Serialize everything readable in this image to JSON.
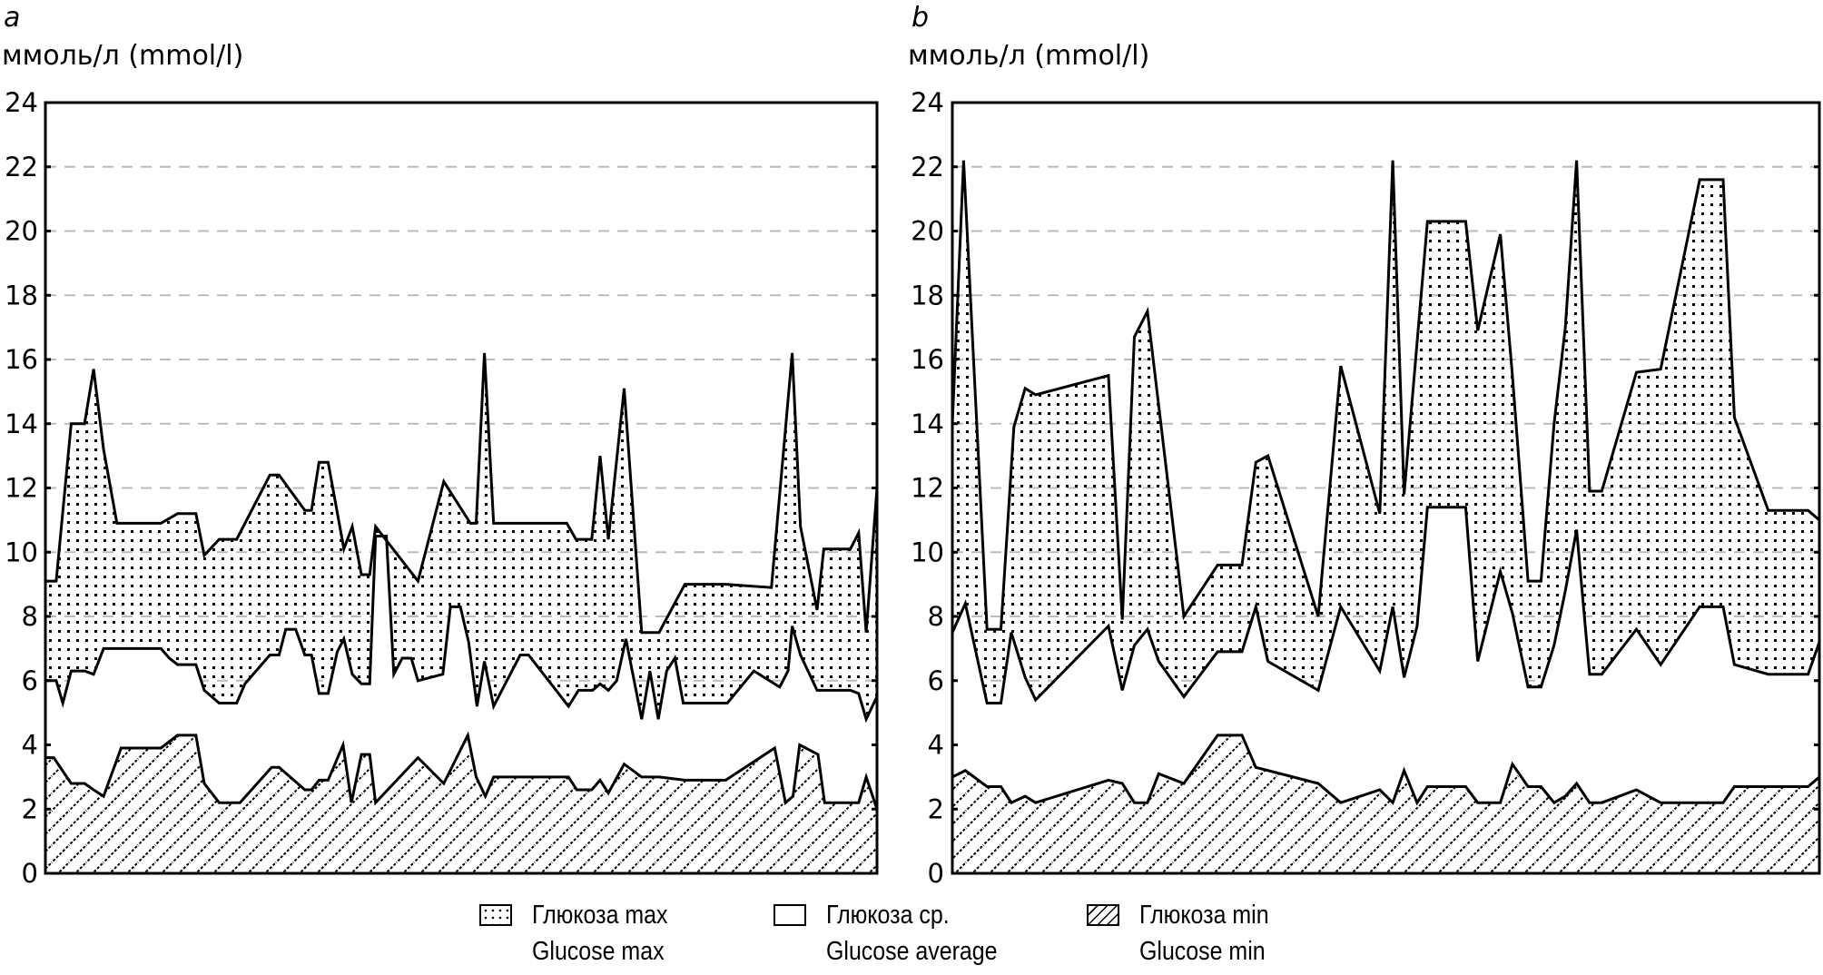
{
  "legend": {
    "items": [
      {
        "ru": "Глюкоза max",
        "en": "Glucose max",
        "pattern": "dots"
      },
      {
        "ru": "Глюкоза ср.",
        "en": "Glucose average",
        "pattern": "none"
      },
      {
        "ru": "Глюкоза min",
        "en": "Glucose min",
        "pattern": "hatch"
      }
    ]
  },
  "colors": {
    "line": "#000000",
    "grid": "#bbbbbb",
    "background": "#ffffff"
  },
  "chart_data": [
    {
      "panel": "a",
      "type": "area",
      "title": "",
      "ylabel": "ммоль/л (mmol/l)",
      "xlabel": "",
      "ylim": [
        0,
        24
      ],
      "yticks": [
        0,
        2,
        4,
        6,
        8,
        10,
        12,
        14,
        16,
        18,
        20,
        22,
        24
      ],
      "xlim": [
        0,
        100
      ],
      "grid": "horizontal-dashed",
      "series": [
        {
          "name": "Glucose max",
          "fill": "dots",
          "x": [
            0,
            1.3,
            3.1,
            4.7,
            5.8,
            7.0,
            8.6,
            13.9,
            15.9,
            18.1,
            19.1,
            20.9,
            23.0,
            27.0,
            28.1,
            31.2,
            32.0,
            32.9,
            34.0,
            35.9,
            36.9,
            38.0,
            39.0,
            39.7,
            44.8,
            47.9,
            51.1,
            51.8,
            52.8,
            53.9,
            62.7,
            63.8,
            65.7,
            66.7,
            67.7,
            69.6,
            71.7,
            73.8,
            76.9,
            81.8,
            87.3,
            89.8,
            90.8,
            92.8,
            93.6,
            96.8,
            97.8,
            98.7,
            100
          ],
          "y": [
            9.1,
            9.1,
            14,
            14,
            15.7,
            13.2,
            10.9,
            10.9,
            11.2,
            11.2,
            9.9,
            10.4,
            10.4,
            12.4,
            12.4,
            11.3,
            11.3,
            12.8,
            12.8,
            10.1,
            10.8,
            9.3,
            9.3,
            10.8,
            9.1,
            12.2,
            10.9,
            10.9,
            16.2,
            10.9,
            10.9,
            10.4,
            10.4,
            13,
            10.4,
            15.1,
            7.5,
            7.5,
            9,
            9,
            8.9,
            16.2,
            10.8,
            8.2,
            10.1,
            10.1,
            10.6,
            7.5,
            12
          ]
        },
        {
          "name": "Glucose average",
          "fill": "none",
          "x": [
            0,
            1.3,
            2.1,
            3.1,
            4.7,
            5.8,
            7.0,
            13.9,
            14.9,
            15.9,
            18.1,
            19.1,
            20.9,
            23.0,
            24.0,
            27.0,
            28.1,
            28.9,
            30.1,
            31.2,
            32.0,
            32.9,
            34.0,
            35.1,
            35.9,
            36.9,
            38.0,
            39.0,
            39.7,
            41.0,
            41.9,
            42.9,
            44.0,
            44.8,
            47.8,
            48.7,
            49.9,
            50.9,
            51.9,
            52.8,
            53.9,
            57.1,
            58.1,
            62.9,
            64.1,
            65.8,
            66.7,
            67.7,
            68.7,
            69.8,
            70.8,
            71.7,
            72.7,
            73.7,
            74.7,
            75.7,
            76.7,
            82.0,
            85.2,
            88.3,
            89.3,
            89.8,
            90.8,
            92.8,
            96.8,
            97.8,
            98.7,
            100
          ],
          "y": [
            6,
            6,
            5.3,
            6.3,
            6.3,
            6.2,
            7,
            7,
            6.7,
            6.5,
            6.5,
            5.7,
            5.3,
            5.3,
            5.9,
            6.8,
            6.8,
            7.6,
            7.6,
            6.8,
            6.8,
            5.6,
            5.6,
            6.9,
            7.3,
            6.2,
            5.9,
            5.9,
            10.5,
            10.5,
            6.2,
            6.7,
            6.7,
            6,
            6.2,
            8.3,
            8.3,
            7.2,
            5.2,
            6.6,
            5.2,
            6.8,
            6.8,
            5.2,
            5.7,
            5.7,
            5.9,
            5.7,
            6,
            7.3,
            6,
            4.8,
            6.3,
            4.8,
            6.3,
            6.7,
            5.3,
            5.3,
            6.3,
            5.8,
            6.3,
            7.7,
            6.8,
            5.7,
            5.7,
            5.6,
            4.8,
            5.5
          ]
        },
        {
          "name": "Glucose min",
          "fill": "hatch",
          "x": [
            0,
            1.0,
            3.1,
            4.7,
            5.8,
            7.0,
            9.1,
            13.9,
            15.9,
            18.1,
            19.1,
            20.9,
            23.4,
            27.2,
            28.1,
            31.2,
            32.0,
            32.9,
            34.0,
            35.8,
            36.8,
            38.0,
            39.0,
            39.7,
            44.8,
            47.9,
            50.8,
            51.8,
            52.9,
            53.9,
            62.9,
            63.9,
            65.7,
            66.7,
            67.7,
            69.6,
            71.7,
            73.8,
            76.9,
            81.8,
            87.7,
            89.0,
            89.9,
            90.7,
            92.9,
            93.7,
            97.8,
            98.7,
            100
          ],
          "y": [
            3.6,
            3.6,
            2.8,
            2.8,
            2.6,
            2.4,
            3.9,
            3.9,
            4.3,
            4.3,
            2.8,
            2.2,
            2.2,
            3.3,
            3.3,
            2.6,
            2.6,
            2.9,
            2.9,
            4,
            2.2,
            3.7,
            3.7,
            2.2,
            3.6,
            2.8,
            4.3,
            3,
            2.4,
            3,
            3,
            2.6,
            2.6,
            2.9,
            2.5,
            3.4,
            3,
            3,
            2.9,
            2.9,
            3.9,
            2.2,
            2.4,
            4,
            3.7,
            2.2,
            2.2,
            3,
            2
          ]
        }
      ]
    },
    {
      "panel": "b",
      "type": "area",
      "title": "",
      "ylabel": "ммоль/л (mmol/l)",
      "xlabel": "",
      "ylim": [
        0,
        24
      ],
      "yticks": [
        0,
        2,
        4,
        6,
        8,
        10,
        12,
        14,
        16,
        18,
        20,
        22,
        24
      ],
      "xlim": [
        0,
        100
      ],
      "grid": "horizontal-dashed",
      "series": [
        {
          "name": "Glucose max",
          "fill": "dots",
          "x": [
            0,
            1.3,
            4.0,
            5.6,
            7.1,
            8.4,
            9.6,
            18.0,
            19.6,
            21.0,
            22.5,
            26.7,
            30.6,
            33.4,
            35.0,
            36.4,
            42.2,
            44.8,
            49.3,
            50.8,
            52.1,
            54.8,
            59.2,
            60.6,
            63.2,
            64.6,
            66.4,
            67.9,
            69.4,
            70.7,
            72.0,
            73.5,
            74.9,
            78.9,
            81.7,
            86.2,
            88.9,
            90.2,
            94.1,
            98.7,
            100
          ],
          "y": [
            14,
            22.2,
            7.6,
            7.6,
            13.9,
            15.1,
            14.9,
            15.5,
            7.9,
            16.7,
            17.5,
            8,
            9.6,
            9.6,
            12.8,
            13,
            8,
            15.8,
            11.2,
            22.2,
            11.8,
            20.3,
            20.3,
            16.9,
            19.9,
            15.5,
            9.1,
            9.1,
            14,
            17,
            22.2,
            11.9,
            11.9,
            15.6,
            15.7,
            21.6,
            21.6,
            14.2,
            11.3,
            11.3,
            11
          ]
        },
        {
          "name": "Glucose average",
          "fill": "none",
          "x": [
            0,
            1.5,
            4.0,
            5.6,
            6.8,
            8.4,
            9.6,
            18.0,
            19.6,
            21.0,
            22.5,
            23.8,
            26.7,
            30.6,
            33.4,
            35.0,
            36.4,
            42.2,
            44.8,
            49.3,
            50.8,
            52.1,
            53.6,
            54.8,
            59.2,
            60.6,
            63.2,
            64.6,
            66.4,
            67.9,
            69.4,
            70.7,
            72.0,
            73.5,
            74.9,
            78.9,
            81.7,
            86.2,
            88.9,
            90.2,
            94.1,
            98.7,
            100
          ],
          "y": [
            7.5,
            8.4,
            5.3,
            5.3,
            7.5,
            6.1,
            5.4,
            7.7,
            5.7,
            7.1,
            7.6,
            6.6,
            5.5,
            6.9,
            6.9,
            8.3,
            6.6,
            5.7,
            8.3,
            6.3,
            8.3,
            6.1,
            7.7,
            11.4,
            11.4,
            6.6,
            9.4,
            8.1,
            5.8,
            5.8,
            7.1,
            8.8,
            10.7,
            6.2,
            6.2,
            7.6,
            6.5,
            8.3,
            8.3,
            6.5,
            6.2,
            6.2,
            7.2
          ]
        },
        {
          "name": "Glucose min",
          "fill": "hatch",
          "x": [
            0,
            1.5,
            4.0,
            5.6,
            6.8,
            8.4,
            9.6,
            18.0,
            19.6,
            21.0,
            22.5,
            23.8,
            26.7,
            30.6,
            33.4,
            35.0,
            42.2,
            44.8,
            49.3,
            50.8,
            52.1,
            53.6,
            54.8,
            59.2,
            60.6,
            63.2,
            64.6,
            66.4,
            67.9,
            69.4,
            70.7,
            72.0,
            73.5,
            74.9,
            78.9,
            81.7,
            88.9,
            90.2,
            98.7,
            100
          ],
          "y": [
            3,
            3.2,
            2.7,
            2.7,
            2.2,
            2.4,
            2.2,
            2.9,
            2.8,
            2.2,
            2.2,
            3.1,
            2.8,
            4.3,
            4.3,
            3.3,
            2.8,
            2.2,
            2.6,
            2.2,
            3.2,
            2.2,
            2.7,
            2.7,
            2.2,
            2.2,
            3.4,
            2.7,
            2.7,
            2.2,
            2.4,
            2.8,
            2.2,
            2.2,
            2.6,
            2.2,
            2.2,
            2.7,
            2.7,
            3
          ]
        }
      ]
    }
  ]
}
